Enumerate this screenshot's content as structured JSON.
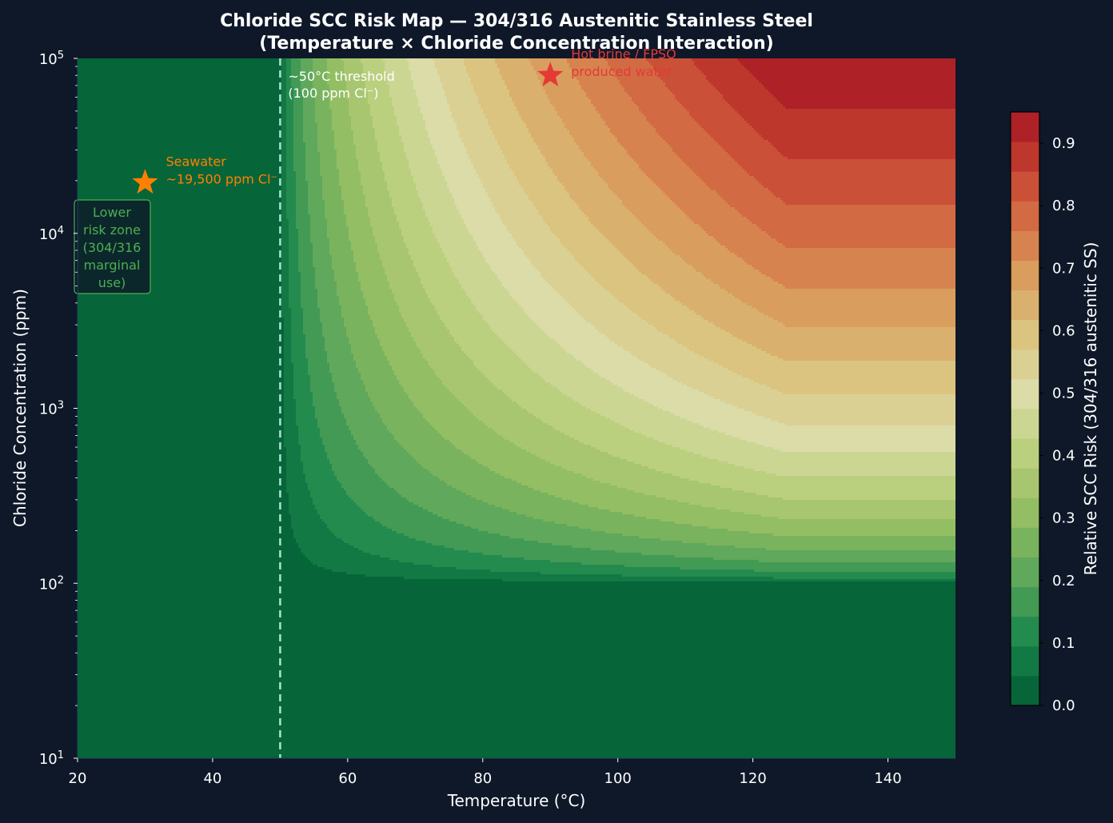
{
  "chart_data": {
    "type": "contour",
    "title": "Chloride SCC Risk Map — 304/316 Austenitic Stainless Steel",
    "subtitle": "(Temperature × Chloride Concentration Interaction)",
    "xlabel": "Temperature (°C)",
    "ylabel": "Chloride Concentration (ppm)",
    "xlim": [
      20,
      150
    ],
    "ylim": [
      10,
      100000
    ],
    "yscale": "log",
    "xticks": [
      "20",
      "40",
      "60",
      "80",
      "100",
      "120",
      "140"
    ],
    "xtick_values": [
      20,
      40,
      60,
      80,
      100,
      120,
      140
    ],
    "yticks": [
      {
        "base": "10",
        "exp": "1",
        "value": 10
      },
      {
        "base": "10",
        "exp": "2",
        "value": 100
      },
      {
        "base": "10",
        "exp": "3",
        "value": 1000
      },
      {
        "base": "10",
        "exp": "4",
        "value": 10000
      },
      {
        "base": "10",
        "exp": "5",
        "value": 100000
      }
    ],
    "risk_model": {
      "temperature_onset_c": 50,
      "temperature_plateau_c": 125,
      "chloride_onset_ppm": 100,
      "max_risk": 0.95
    },
    "colorbar": {
      "label": "Relative SCC Risk (304/316 austenitic SS)",
      "range": [
        0.0,
        0.95
      ],
      "levels": 20,
      "ticks": [
        "0.0",
        "0.1",
        "0.2",
        "0.3",
        "0.4",
        "0.5",
        "0.6",
        "0.7",
        "0.8",
        "0.9"
      ],
      "tick_values": [
        0.0,
        0.1,
        0.2,
        0.3,
        0.4,
        0.5,
        0.6,
        0.7,
        0.8,
        0.9
      ],
      "colormap": "RdYlGn_r"
    },
    "threshold_line": {
      "x": 50,
      "label_line1": "~50°C threshold",
      "label_line2": "(100 ppm Cl⁻)",
      "color": "#a8e6cf"
    },
    "markers": [
      {
        "x": 30,
        "y": 19500,
        "label_line1": "Seawater",
        "label_line2": "~19,500 ppm Cl⁻",
        "color": "#ff8000"
      },
      {
        "x": 90,
        "y": 80000,
        "label_line1": "Hot brine / FPSO",
        "label_line2": "produced water",
        "color": "#e53935"
      }
    ],
    "zone_box": {
      "lines": [
        "Lower",
        "risk zone",
        "(304/316",
        "marginal",
        "use)"
      ],
      "color": "#4caf50"
    }
  }
}
